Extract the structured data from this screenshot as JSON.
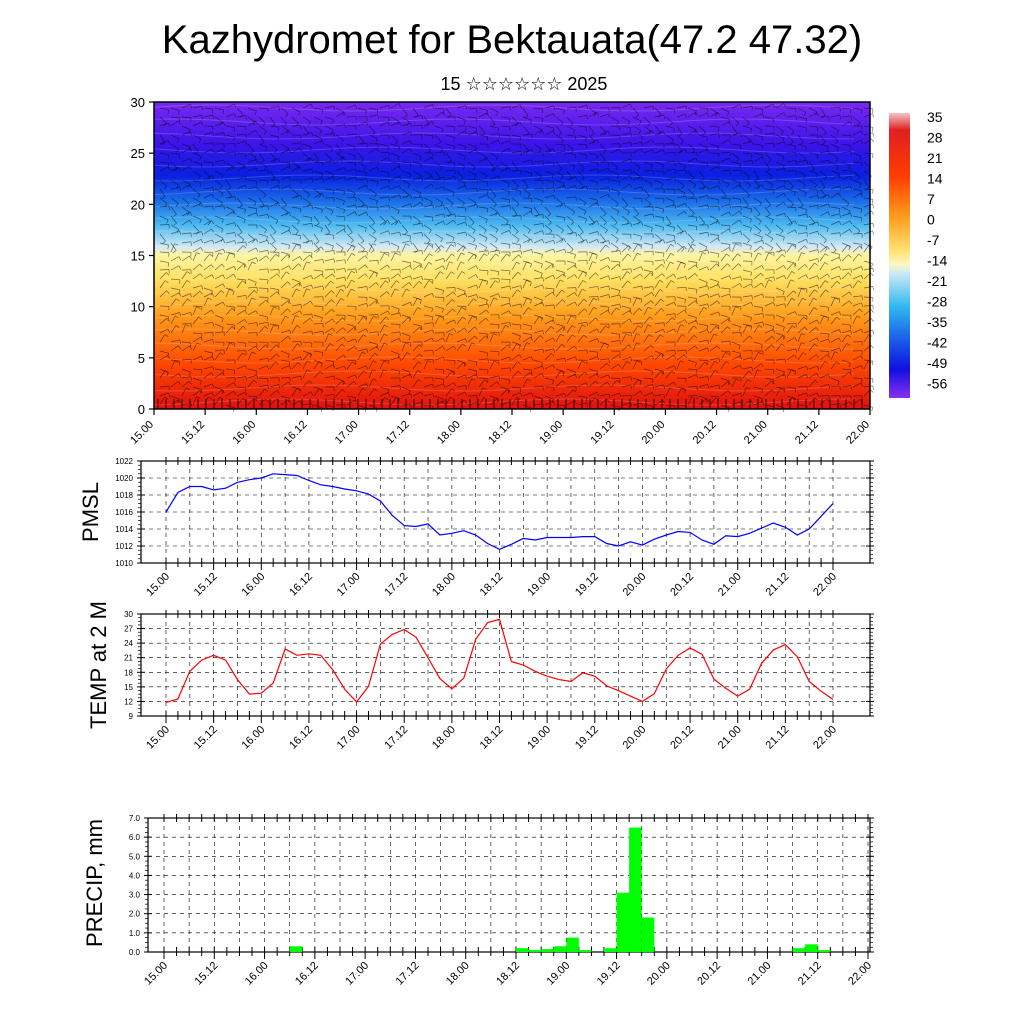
{
  "title": "Kazhydromet for Bektauata(47.2 47.32)",
  "subtitle": "15 ☆☆☆☆☆☆ 2025",
  "chart_data": [
    {
      "type": "heatmap",
      "panel": "cross-section",
      "xlabel": "",
      "ylabel": "",
      "ylim": [
        0,
        30
      ],
      "yticks": [
        "0",
        "5",
        "10",
        "15",
        "20",
        "25",
        "30"
      ],
      "xticks": [
        "15.00",
        "15.12",
        "16.00",
        "16.12",
        "17.00",
        "17.12",
        "18.00",
        "18.12",
        "19.00",
        "19.12",
        "20.00",
        "20.12",
        "21.00",
        "21.12",
        "22.00"
      ],
      "description_levels": [
        0,
        5,
        10,
        15,
        20,
        25,
        30
      ],
      "temperature_profile": [
        {
          "level": 0,
          "value": 24
        },
        {
          "level": 5,
          "value": 18
        },
        {
          "level": 10,
          "value": 7
        },
        {
          "level": 14,
          "value": -3
        },
        {
          "level": 17,
          "value": -20
        },
        {
          "level": 20,
          "value": -38
        },
        {
          "level": 23,
          "value": -56
        },
        {
          "level": 26,
          "value": -52
        },
        {
          "level": 30,
          "value": -49
        }
      ],
      "overlay": "wind barbs",
      "colorbar": {
        "labels": [
          "35",
          "28",
          "21",
          "14",
          "7",
          "0",
          "-7",
          "-14",
          "-21",
          "-28",
          "-35",
          "-42",
          "-49",
          "-56"
        ]
      }
    },
    {
      "type": "line",
      "panel": "pmsl",
      "ylabel": "PMSL",
      "ylim": [
        1010,
        1022
      ],
      "yticks": [
        "1010",
        "1012",
        "1014",
        "1016",
        "1018",
        "1020",
        "1022"
      ],
      "xticks": [
        "15.00",
        "15.12",
        "16.00",
        "16.12",
        "17.00",
        "17.12",
        "18.00",
        "18.12",
        "19.00",
        "19.12",
        "20.00",
        "20.12",
        "21.00",
        "21.12",
        "22.00"
      ],
      "color": "#0000ff",
      "grid": true,
      "x": [
        0,
        3,
        6,
        9,
        12,
        15,
        18,
        21,
        24,
        27,
        30,
        33,
        36,
        39,
        42,
        45,
        48,
        51,
        54,
        57,
        60,
        63,
        66,
        69,
        72,
        75,
        78,
        81,
        84,
        87,
        90,
        93,
        96,
        99,
        102,
        105,
        108,
        111,
        114,
        117,
        120,
        123,
        126,
        129,
        132,
        135,
        138,
        141,
        144,
        147,
        150,
        153,
        156,
        159,
        162,
        165,
        168
      ],
      "values": [
        1016,
        1018.3,
        1019,
        1019,
        1018.6,
        1018.8,
        1019.5,
        1019.8,
        1020,
        1020.5,
        1020.4,
        1020.3,
        1019.7,
        1019.2,
        1019,
        1018.7,
        1018.5,
        1018.1,
        1017.3,
        1015.6,
        1014.4,
        1014.3,
        1014.6,
        1013.3,
        1013.5,
        1013.8,
        1013.3,
        1012.3,
        1011.6,
        1012.2,
        1012.9,
        1012.7,
        1013,
        1013,
        1013,
        1013.1,
        1013.1,
        1012.3,
        1012,
        1012.5,
        1012.1,
        1012.8,
        1013.3,
        1013.7,
        1013.6,
        1012.7,
        1012.2,
        1013.2,
        1013.1,
        1013.5,
        1014.1,
        1014.7,
        1014.2,
        1013.3,
        1014,
        1015.5,
        1017
      ]
    },
    {
      "type": "line",
      "panel": "temp2m",
      "ylabel": "TEMP at 2 M",
      "ylim": [
        9,
        30
      ],
      "yticks": [
        "9",
        "12",
        "15",
        "18",
        "21",
        "24",
        "27",
        "30"
      ],
      "xticks": [
        "15.00",
        "15.12",
        "16.00",
        "16.12",
        "17.00",
        "17.12",
        "18.00",
        "18.12",
        "19.00",
        "19.12",
        "20.00",
        "20.12",
        "21.00",
        "21.12",
        "22.00"
      ],
      "color": "#ff0000",
      "grid": true,
      "x": [
        0,
        3,
        6,
        9,
        12,
        15,
        18,
        21,
        24,
        27,
        30,
        33,
        36,
        39,
        42,
        45,
        48,
        51,
        54,
        57,
        60,
        63,
        66,
        69,
        72,
        75,
        78,
        81,
        84,
        87,
        90,
        93,
        96,
        99,
        102,
        105,
        108,
        111,
        114,
        117,
        120,
        123,
        126,
        129,
        132,
        135,
        138,
        141,
        144,
        147,
        150,
        153,
        156,
        159,
        162,
        165,
        168
      ],
      "values": [
        11.8,
        12.5,
        18.2,
        20.5,
        21.5,
        20.5,
        16.5,
        13.5,
        13.7,
        15.8,
        22.8,
        21.5,
        21.8,
        21.5,
        18.5,
        14.5,
        11.9,
        15.1,
        23.8,
        25.8,
        26.8,
        25.2,
        21,
        16.7,
        14.6,
        16.8,
        24.8,
        28.2,
        28.9,
        20.2,
        19.5,
        18.2,
        17.2,
        16.5,
        16.1,
        17.9,
        17.2,
        15.2,
        14.2,
        13.1,
        12,
        13.6,
        18.7,
        21.5,
        23,
        21.7,
        16.6,
        14.7,
        13.1,
        14.5,
        19.8,
        22.6,
        23.7,
        21.2,
        16.1,
        14.1,
        12.4
      ]
    },
    {
      "type": "bar",
      "panel": "precip",
      "ylabel": "PRECIP, mm",
      "ylim": [
        0,
        7
      ],
      "yticks": [
        "0.0",
        "1.0",
        "2.0",
        "3.0",
        "4.0",
        "5.0",
        "6.0",
        "7.0"
      ],
      "xticks": [
        "15.00",
        "15.12",
        "16.00",
        "16.12",
        "17.00",
        "17.12",
        "18.00",
        "18.12",
        "19.00",
        "19.12",
        "20.00",
        "20.12",
        "21.00",
        "21.12",
        "22.00"
      ],
      "color": "#00ff00",
      "grid": true,
      "bar_hours": 3,
      "x": [
        30,
        84,
        87,
        90,
        93,
        96,
        99,
        105,
        108,
        111,
        114,
        150,
        153,
        156
      ],
      "values": [
        0.3,
        0.2,
        0.1,
        0.15,
        0.3,
        0.75,
        0.1,
        0.2,
        3.1,
        6.5,
        1.8,
        0.2,
        0.4,
        0.1
      ]
    }
  ]
}
